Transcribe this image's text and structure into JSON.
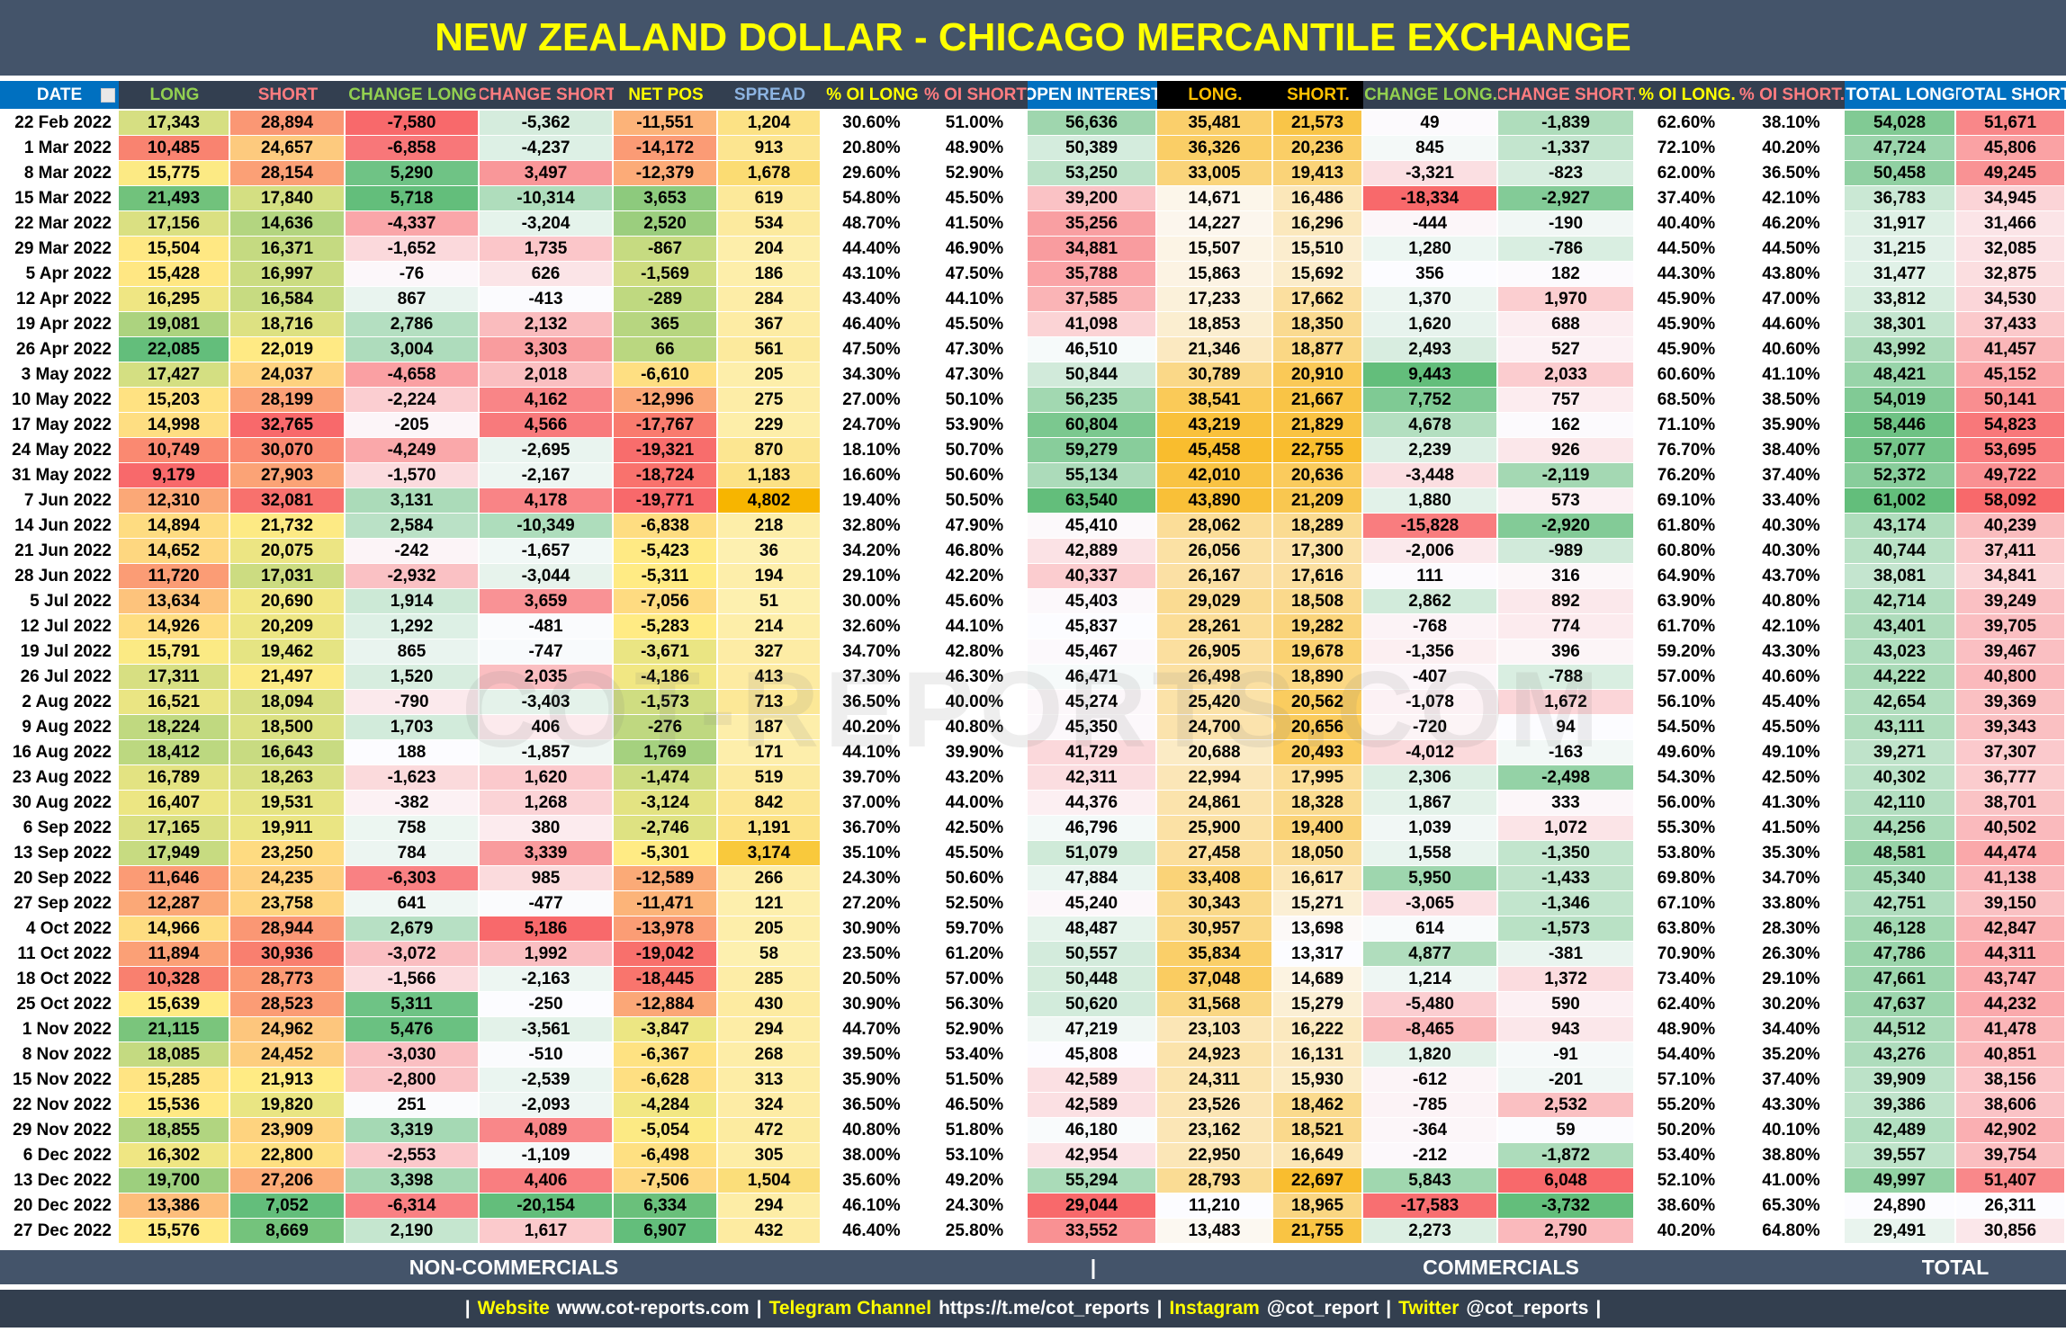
{
  "title": "NEW ZEALAND DOLLAR - CHICAGO MERCANTILE EXCHANGE",
  "watermark": "COT-REPORTS.COM",
  "table": {
    "headers": [
      "DATE",
      "LONG",
      "SHORT",
      "CHANGE LONG",
      "CHANGE SHORT",
      "NET POS",
      "SPREAD",
      "% OI LONG",
      "% OI SHORT",
      "OPEN INTEREST",
      "LONG.",
      "SHORT.",
      "CHANGE LONG.",
      "CHANGE SHORT.",
      "% OI LONG.",
      "% OI SHORT.",
      "TOTAL LONG",
      "TOTAL SHORT"
    ],
    "rows": [
      [
        "22 Feb 2022",
        "17,343",
        "28,894",
        "-7,580",
        "-5,362",
        "-11,551",
        "1,204",
        "30.60%",
        "51.00%",
        "56,636",
        "35,481",
        "21,573",
        "49",
        "-1,839",
        "62.60%",
        "38.10%",
        "54,028",
        "51,671"
      ],
      [
        "1 Mar 2022",
        "10,485",
        "24,657",
        "-6,858",
        "-4,237",
        "-14,172",
        "913",
        "20.80%",
        "48.90%",
        "50,389",
        "36,326",
        "20,236",
        "845",
        "-1,337",
        "72.10%",
        "40.20%",
        "47,724",
        "45,806"
      ],
      [
        "8 Mar 2022",
        "15,775",
        "28,154",
        "5,290",
        "3,497",
        "-12,379",
        "1,678",
        "29.60%",
        "52.90%",
        "53,250",
        "33,005",
        "19,413",
        "-3,321",
        "-823",
        "62.00%",
        "36.50%",
        "50,458",
        "49,245"
      ],
      [
        "15 Mar 2022",
        "21,493",
        "17,840",
        "5,718",
        "-10,314",
        "3,653",
        "619",
        "54.80%",
        "45.50%",
        "39,200",
        "14,671",
        "16,486",
        "-18,334",
        "-2,927",
        "37.40%",
        "42.10%",
        "36,783",
        "34,945"
      ],
      [
        "22 Mar 2022",
        "17,156",
        "14,636",
        "-4,337",
        "-3,204",
        "2,520",
        "534",
        "48.70%",
        "41.50%",
        "35,256",
        "14,227",
        "16,296",
        "-444",
        "-190",
        "40.40%",
        "46.20%",
        "31,917",
        "31,466"
      ],
      [
        "29 Mar 2022",
        "15,504",
        "16,371",
        "-1,652",
        "1,735",
        "-867",
        "204",
        "44.40%",
        "46.90%",
        "34,881",
        "15,507",
        "15,510",
        "1,280",
        "-786",
        "44.50%",
        "44.50%",
        "31,215",
        "32,085"
      ],
      [
        "5 Apr 2022",
        "15,428",
        "16,997",
        "-76",
        "626",
        "-1,569",
        "186",
        "43.10%",
        "47.50%",
        "35,788",
        "15,863",
        "15,692",
        "356",
        "182",
        "44.30%",
        "43.80%",
        "31,477",
        "32,875"
      ],
      [
        "12 Apr 2022",
        "16,295",
        "16,584",
        "867",
        "-413",
        "-289",
        "284",
        "43.40%",
        "44.10%",
        "37,585",
        "17,233",
        "17,662",
        "1,370",
        "1,970",
        "45.90%",
        "47.00%",
        "33,812",
        "34,530"
      ],
      [
        "19 Apr 2022",
        "19,081",
        "18,716",
        "2,786",
        "2,132",
        "365",
        "367",
        "46.40%",
        "45.50%",
        "41,098",
        "18,853",
        "18,350",
        "1,620",
        "688",
        "45.90%",
        "44.60%",
        "38,301",
        "37,433"
      ],
      [
        "26 Apr 2022",
        "22,085",
        "22,019",
        "3,004",
        "3,303",
        "66",
        "561",
        "47.50%",
        "47.30%",
        "46,510",
        "21,346",
        "18,877",
        "2,493",
        "527",
        "45.90%",
        "40.60%",
        "43,992",
        "41,457"
      ],
      [
        "3 May 2022",
        "17,427",
        "24,037",
        "-4,658",
        "2,018",
        "-6,610",
        "205",
        "34.30%",
        "47.30%",
        "50,844",
        "30,789",
        "20,910",
        "9,443",
        "2,033",
        "60.60%",
        "41.10%",
        "48,421",
        "45,152"
      ],
      [
        "10 May 2022",
        "15,203",
        "28,199",
        "-2,224",
        "4,162",
        "-12,996",
        "275",
        "27.00%",
        "50.10%",
        "56,235",
        "38,541",
        "21,667",
        "7,752",
        "757",
        "68.50%",
        "38.50%",
        "54,019",
        "50,141"
      ],
      [
        "17 May 2022",
        "14,998",
        "32,765",
        "-205",
        "4,566",
        "-17,767",
        "229",
        "24.70%",
        "53.90%",
        "60,804",
        "43,219",
        "21,829",
        "4,678",
        "162",
        "71.10%",
        "35.90%",
        "58,446",
        "54,823"
      ],
      [
        "24 May 2022",
        "10,749",
        "30,070",
        "-4,249",
        "-2,695",
        "-19,321",
        "870",
        "18.10%",
        "50.70%",
        "59,279",
        "45,458",
        "22,755",
        "2,239",
        "926",
        "76.70%",
        "38.40%",
        "57,077",
        "53,695"
      ],
      [
        "31 May 2022",
        "9,179",
        "27,903",
        "-1,570",
        "-2,167",
        "-18,724",
        "1,183",
        "16.60%",
        "50.60%",
        "55,134",
        "42,010",
        "20,636",
        "-3,448",
        "-2,119",
        "76.20%",
        "37.40%",
        "52,372",
        "49,722"
      ],
      [
        "7 Jun 2022",
        "12,310",
        "32,081",
        "3,131",
        "4,178",
        "-19,771",
        "4,802",
        "19.40%",
        "50.50%",
        "63,540",
        "43,890",
        "21,209",
        "1,880",
        "573",
        "69.10%",
        "33.40%",
        "61,002",
        "58,092"
      ],
      [
        "14 Jun 2022",
        "14,894",
        "21,732",
        "2,584",
        "-10,349",
        "-6,838",
        "218",
        "32.80%",
        "47.90%",
        "45,410",
        "28,062",
        "18,289",
        "-15,828",
        "-2,920",
        "61.80%",
        "40.30%",
        "43,174",
        "40,239"
      ],
      [
        "21 Jun 2022",
        "14,652",
        "20,075",
        "-242",
        "-1,657",
        "-5,423",
        "36",
        "34.20%",
        "46.80%",
        "42,889",
        "26,056",
        "17,300",
        "-2,006",
        "-989",
        "60.80%",
        "40.30%",
        "40,744",
        "37,411"
      ],
      [
        "28 Jun 2022",
        "11,720",
        "17,031",
        "-2,932",
        "-3,044",
        "-5,311",
        "194",
        "29.10%",
        "42.20%",
        "40,337",
        "26,167",
        "17,616",
        "111",
        "316",
        "64.90%",
        "43.70%",
        "38,081",
        "34,841"
      ],
      [
        "5 Jul 2022",
        "13,634",
        "20,690",
        "1,914",
        "3,659",
        "-7,056",
        "51",
        "30.00%",
        "45.60%",
        "45,403",
        "29,029",
        "18,508",
        "2,862",
        "892",
        "63.90%",
        "40.80%",
        "42,714",
        "39,249"
      ],
      [
        "12 Jul 2022",
        "14,926",
        "20,209",
        "1,292",
        "-481",
        "-5,283",
        "214",
        "32.60%",
        "44.10%",
        "45,837",
        "28,261",
        "19,282",
        "-768",
        "774",
        "61.70%",
        "42.10%",
        "43,401",
        "39,705"
      ],
      [
        "19 Jul 2022",
        "15,791",
        "19,462",
        "865",
        "-747",
        "-3,671",
        "327",
        "34.70%",
        "42.80%",
        "45,467",
        "26,905",
        "19,678",
        "-1,356",
        "396",
        "59.20%",
        "43.30%",
        "43,023",
        "39,467"
      ],
      [
        "26 Jul 2022",
        "17,311",
        "21,497",
        "1,520",
        "2,035",
        "-4,186",
        "413",
        "37.30%",
        "46.30%",
        "46,471",
        "26,498",
        "18,890",
        "-407",
        "-788",
        "57.00%",
        "40.60%",
        "44,222",
        "40,800"
      ],
      [
        "2 Aug 2022",
        "16,521",
        "18,094",
        "-790",
        "-3,403",
        "-1,573",
        "713",
        "36.50%",
        "40.00%",
        "45,274",
        "25,420",
        "20,562",
        "-1,078",
        "1,672",
        "56.10%",
        "45.40%",
        "42,654",
        "39,369"
      ],
      [
        "9 Aug 2022",
        "18,224",
        "18,500",
        "1,703",
        "406",
        "-276",
        "187",
        "40.20%",
        "40.80%",
        "45,350",
        "24,700",
        "20,656",
        "-720",
        "94",
        "54.50%",
        "45.50%",
        "43,111",
        "39,343"
      ],
      [
        "16 Aug 2022",
        "18,412",
        "16,643",
        "188",
        "-1,857",
        "1,769",
        "171",
        "44.10%",
        "39.90%",
        "41,729",
        "20,688",
        "20,493",
        "-4,012",
        "-163",
        "49.60%",
        "49.10%",
        "39,271",
        "37,307"
      ],
      [
        "23 Aug 2022",
        "16,789",
        "18,263",
        "-1,623",
        "1,620",
        "-1,474",
        "519",
        "39.70%",
        "43.20%",
        "42,311",
        "22,994",
        "17,995",
        "2,306",
        "-2,498",
        "54.30%",
        "42.50%",
        "40,302",
        "36,777"
      ],
      [
        "30 Aug 2022",
        "16,407",
        "19,531",
        "-382",
        "1,268",
        "-3,124",
        "842",
        "37.00%",
        "44.00%",
        "44,376",
        "24,861",
        "18,328",
        "1,867",
        "333",
        "56.00%",
        "41.30%",
        "42,110",
        "38,701"
      ],
      [
        "6 Sep 2022",
        "17,165",
        "19,911",
        "758",
        "380",
        "-2,746",
        "1,191",
        "36.70%",
        "42.50%",
        "46,796",
        "25,900",
        "19,400",
        "1,039",
        "1,072",
        "55.30%",
        "41.50%",
        "44,256",
        "40,502"
      ],
      [
        "13 Sep 2022",
        "17,949",
        "23,250",
        "784",
        "3,339",
        "-5,301",
        "3,174",
        "35.10%",
        "45.50%",
        "51,079",
        "27,458",
        "18,050",
        "1,558",
        "-1,350",
        "53.80%",
        "35.30%",
        "48,581",
        "44,474"
      ],
      [
        "20 Sep 2022",
        "11,646",
        "24,235",
        "-6,303",
        "985",
        "-12,589",
        "266",
        "24.30%",
        "50.60%",
        "47,884",
        "33,408",
        "16,617",
        "5,950",
        "-1,433",
        "69.80%",
        "34.70%",
        "45,340",
        "41,138"
      ],
      [
        "27 Sep 2022",
        "12,287",
        "23,758",
        "641",
        "-477",
        "-11,471",
        "121",
        "27.20%",
        "52.50%",
        "45,240",
        "30,343",
        "15,271",
        "-3,065",
        "-1,346",
        "67.10%",
        "33.80%",
        "42,751",
        "39,150"
      ],
      [
        "4 Oct 2022",
        "14,966",
        "28,944",
        "2,679",
        "5,186",
        "-13,978",
        "205",
        "30.90%",
        "59.70%",
        "48,487",
        "30,957",
        "13,698",
        "614",
        "-1,573",
        "63.80%",
        "28.30%",
        "46,128",
        "42,847"
      ],
      [
        "11 Oct 2022",
        "11,894",
        "30,936",
        "-3,072",
        "1,992",
        "-19,042",
        "58",
        "23.50%",
        "61.20%",
        "50,557",
        "35,834",
        "13,317",
        "4,877",
        "-381",
        "70.90%",
        "26.30%",
        "47,786",
        "44,311"
      ],
      [
        "18 Oct 2022",
        "10,328",
        "28,773",
        "-1,566",
        "-2,163",
        "-18,445",
        "285",
        "20.50%",
        "57.00%",
        "50,448",
        "37,048",
        "14,689",
        "1,214",
        "1,372",
        "73.40%",
        "29.10%",
        "47,661",
        "43,747"
      ],
      [
        "25 Oct 2022",
        "15,639",
        "28,523",
        "5,311",
        "-250",
        "-12,884",
        "430",
        "30.90%",
        "56.30%",
        "50,620",
        "31,568",
        "15,279",
        "-5,480",
        "590",
        "62.40%",
        "30.20%",
        "47,637",
        "44,232"
      ],
      [
        "1 Nov 2022",
        "21,115",
        "24,962",
        "5,476",
        "-3,561",
        "-3,847",
        "294",
        "44.70%",
        "52.90%",
        "47,219",
        "23,103",
        "16,222",
        "-8,465",
        "943",
        "48.90%",
        "34.40%",
        "44,512",
        "41,478"
      ],
      [
        "8 Nov 2022",
        "18,085",
        "24,452",
        "-3,030",
        "-510",
        "-6,367",
        "268",
        "39.50%",
        "53.40%",
        "45,808",
        "24,923",
        "16,131",
        "1,820",
        "-91",
        "54.40%",
        "35.20%",
        "43,276",
        "40,851"
      ],
      [
        "15 Nov 2022",
        "15,285",
        "21,913",
        "-2,800",
        "-2,539",
        "-6,628",
        "313",
        "35.90%",
        "51.50%",
        "42,589",
        "24,311",
        "15,930",
        "-612",
        "-201",
        "57.10%",
        "37.40%",
        "39,909",
        "38,156"
      ],
      [
        "22 Nov 2022",
        "15,536",
        "19,820",
        "251",
        "-2,093",
        "-4,284",
        "324",
        "36.50%",
        "46.50%",
        "42,589",
        "23,526",
        "18,462",
        "-785",
        "2,532",
        "55.20%",
        "43.30%",
        "39,386",
        "38,606"
      ],
      [
        "29 Nov 2022",
        "18,855",
        "23,909",
        "3,319",
        "4,089",
        "-5,054",
        "472",
        "40.80%",
        "51.80%",
        "46,180",
        "23,162",
        "18,521",
        "-364",
        "59",
        "50.20%",
        "40.10%",
        "42,489",
        "42,902"
      ],
      [
        "6 Dec 2022",
        "16,302",
        "22,800",
        "-2,553",
        "-1,109",
        "-6,498",
        "305",
        "38.00%",
        "53.10%",
        "42,954",
        "22,950",
        "16,649",
        "-212",
        "-1,872",
        "53.40%",
        "38.80%",
        "39,557",
        "39,754"
      ],
      [
        "13 Dec 2022",
        "19,700",
        "27,206",
        "3,398",
        "4,406",
        "-7,506",
        "1,504",
        "35.60%",
        "49.20%",
        "55,294",
        "28,793",
        "22,697",
        "5,843",
        "6,048",
        "52.10%",
        "41.00%",
        "49,997",
        "51,407"
      ],
      [
        "20 Dec 2022",
        "13,386",
        "7,052",
        "-6,314",
        "-20,154",
        "6,334",
        "294",
        "46.10%",
        "24.30%",
        "29,044",
        "11,210",
        "18,965",
        "-17,583",
        "-3,732",
        "38.60%",
        "65.30%",
        "24,890",
        "26,311"
      ],
      [
        "27 Dec 2022",
        "15,576",
        "8,669",
        "2,190",
        "1,617",
        "6,907",
        "432",
        "46.40%",
        "25.80%",
        "33,552",
        "13,483",
        "21,755",
        "2,273",
        "2,790",
        "40.20%",
        "64.80%",
        "29,491",
        "30,856"
      ]
    ]
  },
  "footer": {
    "sections": [
      "NON-COMMERCIALS",
      "COMMERCIALS",
      "TOTAL"
    ],
    "separator": "|"
  },
  "links": {
    "separator": "|",
    "items": [
      {
        "label": "Website",
        "value": "www.cot-reports.com"
      },
      {
        "label": "Telegram Channel",
        "value": "https://t.me/cot_reports"
      },
      {
        "label": "Instagram",
        "value": "@cot_report"
      },
      {
        "label": "Twitter",
        "value": "@cot_reports"
      }
    ]
  }
}
